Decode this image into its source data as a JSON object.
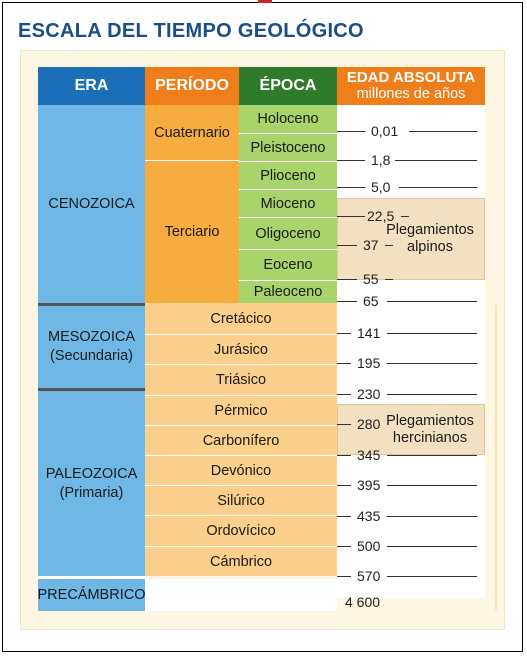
{
  "title": "ESCALA DEL TIEMPO GEOLÓGICO",
  "headers": {
    "era": "ERA",
    "periodo": "PERÍODO",
    "epoca": "ÉPOCA",
    "edad_line1": "EDAD ABSOLUTA",
    "edad_line2": "millones de años"
  },
  "colors": {
    "title": "#1a4d8a",
    "era_header": "#1a6fb8",
    "periodo_header": "#ef7d1a",
    "epoca_header": "#2f7a2b",
    "edad_header": "#ef7d1a",
    "era_fill": "#6fb8e6",
    "periodo_fill": "#f7ac3f",
    "epoca_fill": "#a9d36b",
    "paleozoic_fill": "#fbd08c",
    "note_fill": "#f1e1c0"
  },
  "eras": {
    "cenozoica": "CENOZOICA",
    "mesozoica": "MESOZOICA",
    "mesozoica_alt": "(Secundaria)",
    "paleozoica": "PALEOZOICA",
    "paleozoica_alt": "(Primaria)",
    "precambrico": "PRECÁMBRICO"
  },
  "periods": {
    "cuaternario": "Cuaternario",
    "terciario": "Terciario",
    "cretacico": "Cretácico",
    "jurasico": "Jurásico",
    "triasico": "Triásico",
    "permico": "Pérmico",
    "carbonifero": "Carbonífero",
    "devonico": "Devónico",
    "silurico": "Silúrico",
    "ordovicico": "Ordovícico",
    "cambrico": "Cámbrico"
  },
  "epochs": {
    "holoceno": "Holoceno",
    "pleistoceno": "Pleistoceno",
    "plioceno": "Plioceno",
    "mioceno": "Mioceno",
    "oligoceno": "Oligoceno",
    "eoceno": "Eoceno",
    "paleoceno": "Paleoceno"
  },
  "ages": {
    "a001": "0,01",
    "a18": "1,8",
    "a50": "5,0",
    "a225": "22,5",
    "a37": "37",
    "a55": "55",
    "a65": "65",
    "a141": "141",
    "a195": "195",
    "a230": "230",
    "a280": "280",
    "a345": "345",
    "a395": "395",
    "a435": "435",
    "a500": "500",
    "a570": "570",
    "a4600": "4 600"
  },
  "notes": {
    "alpinos_1": "Plegamientos",
    "alpinos_2": "alpinos",
    "hercinianos_1": "Plegamientos",
    "hercinianos_2": "hercinianos"
  }
}
